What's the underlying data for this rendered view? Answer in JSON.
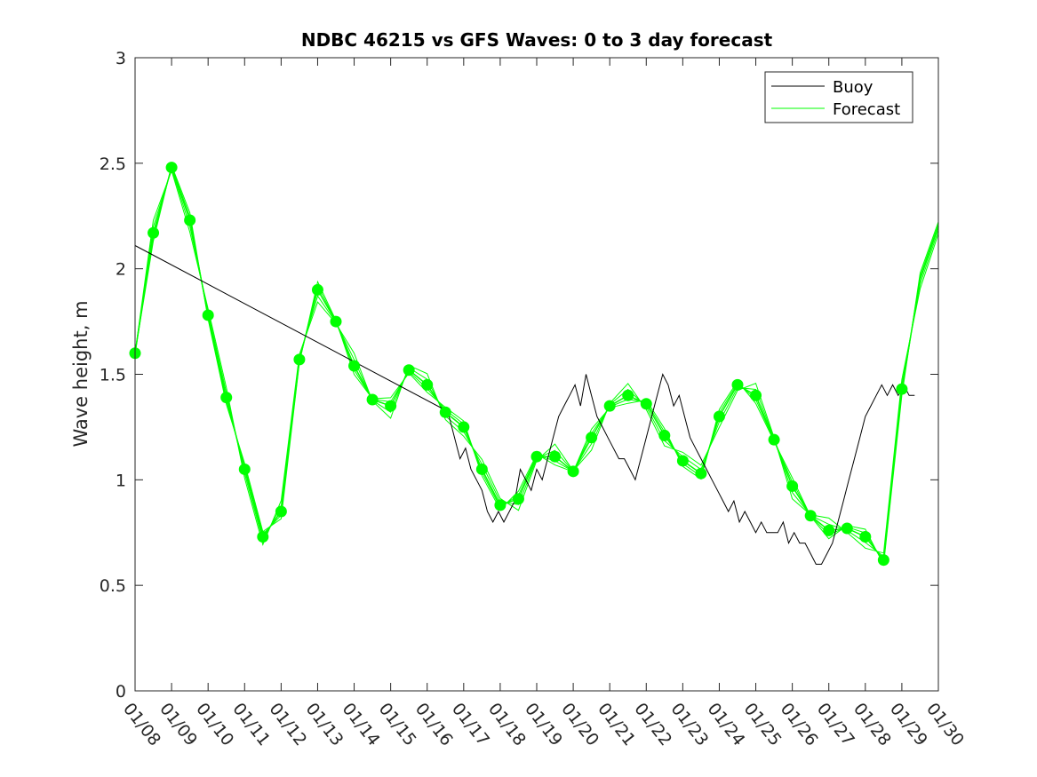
{
  "chart_data": {
    "type": "line",
    "title": "NDBC 46215 vs GFS Waves: 0 to 3 day forecast",
    "xlabel": "",
    "ylabel": "Wave height, m",
    "xlim": [
      0,
      22
    ],
    "ylim": [
      0,
      3
    ],
    "grid": false,
    "legend_position": "top-right",
    "colors": {
      "buoy": "#000000",
      "forecast": "#00ff00",
      "axis": "#262626"
    },
    "x_ticks": [
      "01/08",
      "01/09",
      "01/10",
      "01/11",
      "01/12",
      "01/13",
      "01/14",
      "01/15",
      "01/16",
      "01/17",
      "01/18",
      "01/19",
      "01/20",
      "01/21",
      "01/22",
      "01/23",
      "01/24",
      "01/25",
      "01/26",
      "01/27",
      "01/28",
      "01/29",
      "01/30"
    ],
    "y_ticks": [
      "0",
      "0.5",
      "1",
      "1.5",
      "2",
      "2.5",
      "3"
    ],
    "series": [
      {
        "name": "Buoy",
        "style": "line",
        "x": [
          0,
          8.5,
          8.6,
          8.75,
          8.9,
          9.05,
          9.2,
          9.35,
          9.5,
          9.65,
          9.8,
          9.95,
          10.1,
          10.25,
          10.4,
          10.55,
          10.7,
          10.85,
          11.0,
          11.15,
          11.3,
          11.45,
          11.6,
          11.75,
          11.9,
          12.05,
          12.2,
          12.35,
          12.5,
          12.65,
          12.8,
          12.95,
          13.1,
          13.25,
          13.4,
          13.55,
          13.7,
          13.85,
          14.0,
          14.15,
          14.3,
          14.45,
          14.6,
          14.75,
          14.9,
          15.05,
          15.2,
          15.35,
          15.5,
          15.65,
          15.8,
          15.95,
          16.1,
          16.25,
          16.4,
          16.55,
          16.7,
          16.85,
          17.0,
          17.15,
          17.3,
          17.45,
          17.6,
          17.75,
          17.9,
          18.05,
          18.2,
          18.35,
          18.5,
          18.65,
          18.8,
          18.95,
          19.1,
          19.25,
          19.4,
          19.55,
          19.7,
          19.85,
          20.0,
          20.15,
          20.3,
          20.45,
          20.6,
          20.75,
          20.9,
          21.05,
          21.2,
          21.35
        ],
        "values": [
          2.11,
          1.33,
          1.3,
          1.2,
          1.1,
          1.15,
          1.05,
          1.0,
          0.95,
          0.85,
          0.8,
          0.85,
          0.8,
          0.85,
          0.9,
          1.05,
          1.0,
          0.95,
          1.05,
          1.0,
          1.1,
          1.2,
          1.3,
          1.35,
          1.4,
          1.45,
          1.35,
          1.5,
          1.4,
          1.3,
          1.25,
          1.2,
          1.15,
          1.1,
          1.1,
          1.05,
          1.0,
          1.1,
          1.2,
          1.3,
          1.4,
          1.5,
          1.45,
          1.35,
          1.4,
          1.3,
          1.2,
          1.15,
          1.1,
          1.05,
          1.0,
          0.95,
          0.9,
          0.85,
          0.9,
          0.8,
          0.85,
          0.8,
          0.75,
          0.8,
          0.75,
          0.75,
          0.75,
          0.8,
          0.7,
          0.75,
          0.7,
          0.7,
          0.65,
          0.6,
          0.6,
          0.65,
          0.7,
          0.8,
          0.9,
          1.0,
          1.1,
          1.2,
          1.3,
          1.35,
          1.4,
          1.45,
          1.4,
          1.45,
          1.4,
          1.45,
          1.4,
          1.4
        ]
      },
      {
        "name": "Forecast",
        "style": "line",
        "x": [
          0,
          0.5,
          1.0,
          1.5,
          2.0,
          2.5,
          3.0,
          3.5,
          4.0,
          4.5,
          5.0,
          5.5,
          6.0,
          6.5,
          7.0,
          7.5,
          8.0,
          8.5,
          9.0,
          9.5,
          10.0,
          10.5,
          11.0,
          11.5,
          12.0,
          12.5,
          13.0,
          13.5,
          14.0,
          14.5,
          15.0,
          15.5,
          16.0,
          16.5,
          17.0,
          17.5,
          18.0,
          18.5,
          19.0,
          19.5,
          20.0,
          20.5,
          21.0,
          21.5,
          22.0
        ],
        "values": [
          1.6,
          2.17,
          2.48,
          2.23,
          1.78,
          1.39,
          1.05,
          0.73,
          0.85,
          1.57,
          1.9,
          1.75,
          1.54,
          1.38,
          1.35,
          1.52,
          1.45,
          1.32,
          1.25,
          1.05,
          0.88,
          0.91,
          1.11,
          1.11,
          1.04,
          1.2,
          1.35,
          1.4,
          1.36,
          1.21,
          1.09,
          1.03,
          1.3,
          1.45,
          1.4,
          1.19,
          0.97,
          0.83,
          0.76,
          0.77,
          0.73,
          0.62,
          1.43,
          1.95,
          2.2
        ]
      }
    ],
    "forecast_markers": {
      "x": [
        0,
        0.5,
        1.0,
        1.5,
        2.0,
        2.5,
        3.0,
        3.5,
        4.0,
        4.5,
        5.0,
        5.5,
        6.0,
        6.5,
        7.0,
        7.5,
        8.0,
        8.5,
        9.0,
        9.5,
        10.0,
        10.5,
        11.0,
        11.5,
        12.0,
        12.5,
        13.0,
        13.5,
        14.0,
        14.5,
        15.0,
        15.5,
        16.0,
        16.5,
        17.0,
        17.5,
        18.0,
        18.5,
        19.0,
        19.5,
        20.0,
        20.5,
        21.0
      ],
      "values": [
        1.6,
        2.17,
        2.48,
        2.23,
        1.78,
        1.39,
        1.05,
        0.73,
        0.85,
        1.57,
        1.9,
        1.75,
        1.54,
        1.38,
        1.35,
        1.52,
        1.45,
        1.32,
        1.25,
        1.05,
        0.88,
        0.91,
        1.11,
        1.11,
        1.04,
        1.2,
        1.35,
        1.4,
        1.36,
        1.21,
        1.09,
        1.03,
        1.3,
        1.45,
        1.4,
        1.19,
        0.97,
        0.83,
        0.76,
        0.77,
        0.73,
        0.62,
        1.43
      ]
    },
    "forecast_variant_offsets": [
      -0.04,
      0.03,
      0.06,
      -0.02
    ]
  }
}
